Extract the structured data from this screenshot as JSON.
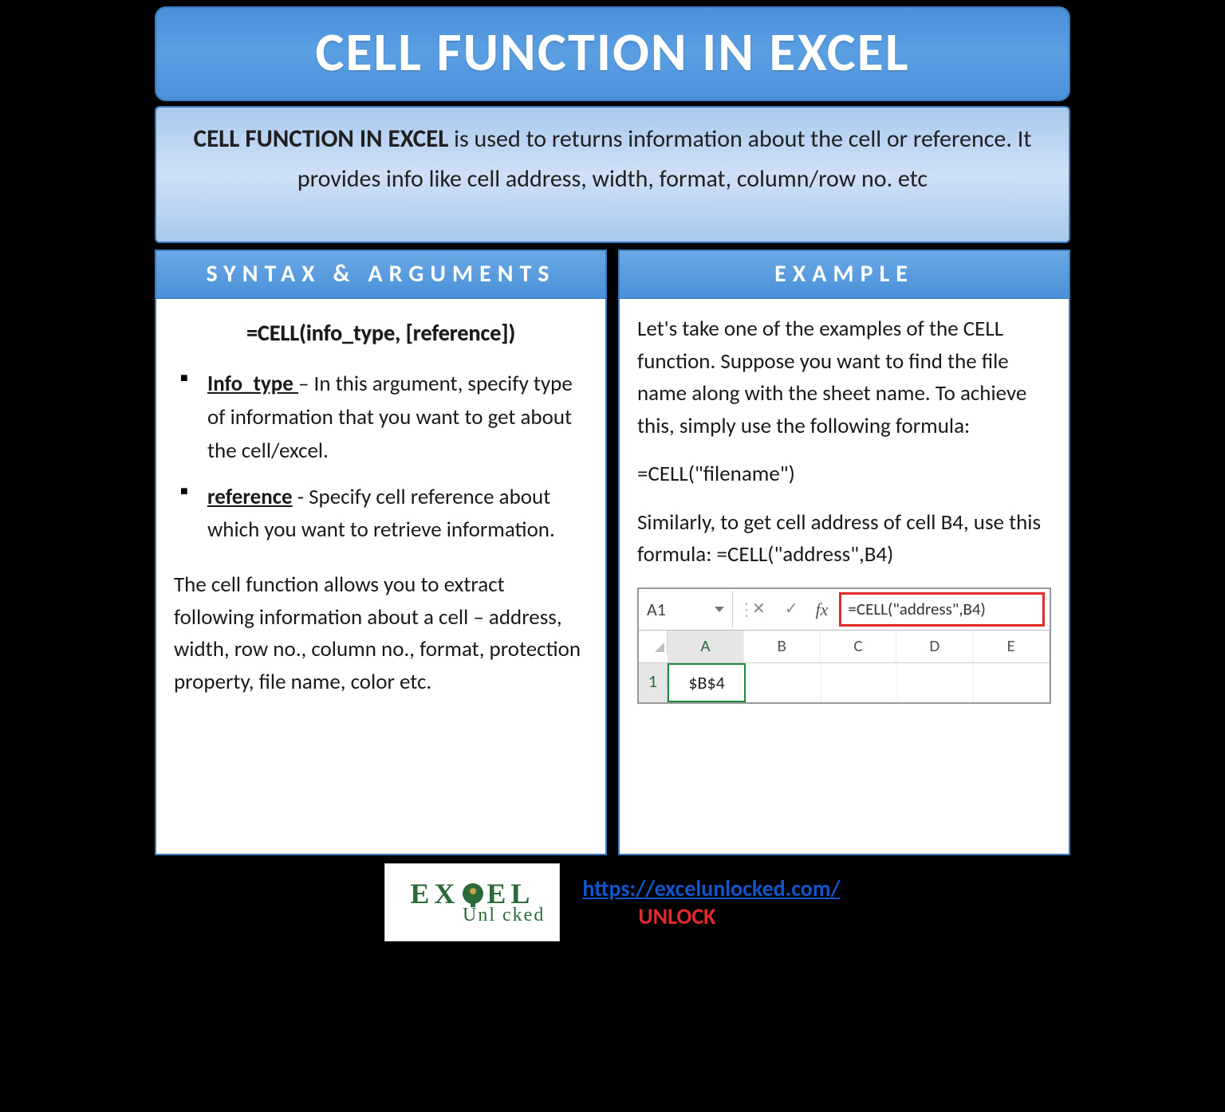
{
  "colors": {
    "banner_bg_top": "#4a90d9",
    "banner_bg_mid": "#5b9fe3",
    "banner_border": "#3a7abf",
    "banner_text": "#ffffff",
    "intro_bg_top": "#a9c9ee",
    "intro_bg_mid": "#cfe0f6",
    "card_bg": "#ffffff",
    "body_bg": "#000000",
    "text": "#1a1a1a",
    "link": "#1155cc",
    "unlock": "#e12a2a",
    "excel_green": "#1f8a3b",
    "highlight_red": "#e12a2a",
    "logo_green": "#2b6b3a"
  },
  "title": "CELL FUNCTION IN EXCEL",
  "intro": {
    "strong": "CELL FUNCTION IN EXCEL",
    "rest": " is used to returns information about the cell or reference. It provides info like cell address, width, format, column/row no. etc"
  },
  "left": {
    "header": "SYNTAX & ARGUMENTS",
    "formula": "=CELL(info_type, [reference])",
    "args": [
      {
        "name": "Info_type ",
        "desc": "– In this argument, specify type of information that you want to get about the cell/excel."
      },
      {
        "name": "reference",
        "desc": " - Specify cell reference about which you want to retrieve information."
      }
    ],
    "summary": "The cell function allows you to extract following information about a cell – address, width, row no., column no., format, protection property, file name, color etc."
  },
  "right": {
    "header": "EXAMPLE",
    "p1": "Let's take one of the examples of the CELL function. Suppose you want to find the file name along with the sheet name. To achieve this, simply use the following formula:",
    "p2": "=CELL(\"filename\")",
    "p3": "Similarly, to get cell address of cell B4, use this formula: =CELL(\"address\",B4)",
    "excel": {
      "namebox": "A1",
      "fx_label": "fx",
      "formula": "=CELL(\"address\",B4)",
      "columns": [
        "A",
        "B",
        "C",
        "D",
        "E"
      ],
      "row_label": "1",
      "a1_value": "$B$4"
    }
  },
  "footer": {
    "logo_top_left": "EX",
    "logo_top_right": "EL",
    "logo_bottom": "Unl   cked",
    "url": "https://excelunlocked.com/",
    "unlock": "UNLOCK"
  }
}
